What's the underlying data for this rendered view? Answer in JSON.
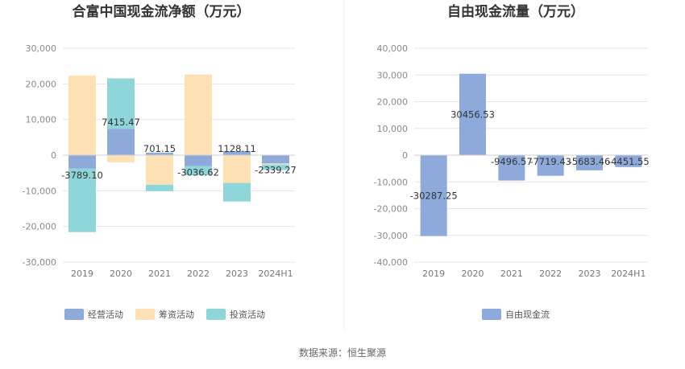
{
  "divider_color": "#eeeeee",
  "source_note": "数据来源：恒生聚源",
  "chart_data": [
    {
      "type": "bar",
      "stacked": true,
      "title": "合富中国现金流净额（万元）",
      "categories": [
        "2019",
        "2020",
        "2021",
        "2022",
        "2023",
        "2024H1"
      ],
      "ylim": [
        -30000,
        30000
      ],
      "yticks": [
        30000,
        20000,
        10000,
        0,
        -10000,
        -20000,
        -30000
      ],
      "ytick_labels": [
        "30,000",
        "20,000",
        "10,000",
        "0",
        "-10,000",
        "-20,000",
        "-30,000"
      ],
      "grid": true,
      "legend_position": "bottom",
      "series": [
        {
          "name": "经营活动",
          "color": "#8eaadb",
          "values": [
            -3789.1,
            7415.47,
            701.15,
            -3036.62,
            1128.11,
            -2339.27
          ]
        },
        {
          "name": "筹资活动",
          "color": "#fde0b3",
          "values": [
            22300,
            -2000,
            -8300,
            22600,
            -7800,
            -300
          ]
        },
        {
          "name": "投资活动",
          "color": "#8ed6d9",
          "values": [
            -17800,
            14100,
            -1800,
            -2600,
            -5200,
            -1500
          ]
        }
      ],
      "data_labels": [
        "-3789.10",
        "7415.47",
        "701.15",
        "-3036.62",
        "1128.11",
        "-2339.27"
      ]
    },
    {
      "type": "bar",
      "title": "自由现金流量（万元）",
      "categories": [
        "2019",
        "2020",
        "2021",
        "2022",
        "2023",
        "2024H1"
      ],
      "ylim": [
        -40000,
        40000
      ],
      "yticks": [
        40000,
        30000,
        20000,
        10000,
        0,
        -10000,
        -20000,
        -30000,
        -40000
      ],
      "ytick_labels": [
        "40,000",
        "30,000",
        "20,000",
        "10,000",
        "0",
        "-10,000",
        "-20,000",
        "-30,000",
        "-40,000"
      ],
      "grid": true,
      "legend_position": "bottom",
      "series": [
        {
          "name": "自由现金流",
          "color": "#8eaadb",
          "values": [
            -30287.25,
            30456.53,
            -9496.57,
            -7719.43,
            -5683.46,
            -4451.55
          ]
        }
      ],
      "data_labels": [
        "-30287.25",
        "30456.53",
        "-9496.57",
        "-7719.43",
        "-5683.46",
        "-4451.55"
      ]
    }
  ]
}
